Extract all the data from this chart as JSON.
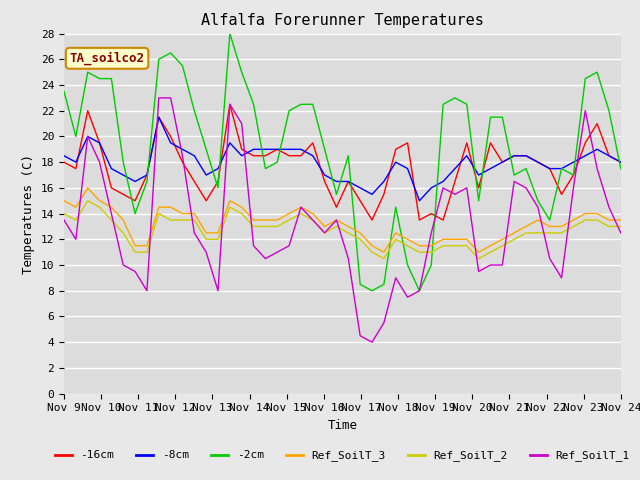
{
  "title": "Alfalfa Forerunner Temperatures",
  "xlabel": "Time",
  "ylabel": "Temperatures (C)",
  "ylim": [
    0,
    28
  ],
  "yticks": [
    0,
    2,
    4,
    6,
    8,
    10,
    12,
    14,
    16,
    18,
    20,
    22,
    24,
    26,
    28
  ],
  "x_labels": [
    "Nov 9",
    "Nov 10",
    "Nov 11",
    "Nov 12",
    "Nov 13",
    "Nov 14",
    "Nov 15",
    "Nov 16",
    "Nov 17",
    "Nov 18",
    "Nov 19",
    "Nov 20",
    "Nov 21",
    "Nov 22",
    "Nov 23",
    "Nov 24"
  ],
  "annotation_text": "TA_soilco2",
  "annotation_color": "#8B0000",
  "annotation_bg": "#FFFFCC",
  "annotation_border": "#CC8800",
  "series": {
    "-16cm": {
      "color": "#FF0000",
      "values": [
        18.0,
        17.5,
        22.0,
        19.5,
        16.0,
        15.5,
        15.0,
        17.0,
        21.5,
        20.0,
        18.0,
        16.5,
        15.0,
        16.5,
        22.5,
        19.0,
        18.5,
        18.5,
        19.0,
        18.5,
        18.5,
        19.5,
        16.5,
        14.5,
        16.5,
        15.0,
        13.5,
        15.5,
        19.0,
        19.5,
        13.5,
        14.0,
        13.5,
        16.5,
        19.5,
        16.0,
        19.5,
        18.0,
        18.5,
        18.5,
        18.0,
        17.5,
        15.5,
        17.0,
        19.5,
        21.0,
        18.5,
        18.0
      ]
    },
    "-8cm": {
      "color": "#0000FF",
      "values": [
        18.5,
        18.0,
        20.0,
        19.5,
        17.5,
        17.0,
        16.5,
        17.0,
        21.5,
        19.5,
        19.0,
        18.5,
        17.0,
        17.5,
        19.5,
        18.5,
        19.0,
        19.0,
        19.0,
        19.0,
        19.0,
        18.5,
        17.0,
        16.5,
        16.5,
        16.0,
        15.5,
        16.5,
        18.0,
        17.5,
        15.0,
        16.0,
        16.5,
        17.5,
        18.5,
        17.0,
        17.5,
        18.0,
        18.5,
        18.5,
        18.0,
        17.5,
        17.5,
        18.0,
        18.5,
        19.0,
        18.5,
        18.0
      ]
    },
    "-2cm": {
      "color": "#00CC00",
      "values": [
        23.5,
        20.0,
        25.0,
        24.5,
        24.5,
        18.0,
        14.0,
        16.5,
        26.0,
        26.5,
        25.5,
        22.0,
        19.0,
        16.0,
        28.0,
        25.0,
        22.5,
        17.5,
        18.0,
        22.0,
        22.5,
        22.5,
        19.0,
        15.5,
        18.5,
        8.5,
        8.0,
        8.5,
        14.5,
        10.0,
        8.0,
        10.0,
        22.5,
        23.0,
        22.5,
        15.0,
        21.5,
        21.5,
        17.0,
        17.5,
        15.0,
        13.5,
        17.5,
        17.0,
        24.5,
        25.0,
        22.0,
        17.5
      ]
    },
    "Ref_SoilT_3": {
      "color": "#FFA500",
      "values": [
        15.0,
        14.5,
        16.0,
        15.0,
        14.5,
        13.5,
        11.5,
        11.5,
        14.5,
        14.5,
        14.0,
        14.0,
        12.5,
        12.5,
        15.0,
        14.5,
        13.5,
        13.5,
        13.5,
        14.0,
        14.5,
        14.0,
        13.0,
        13.5,
        13.0,
        12.5,
        11.5,
        11.0,
        12.5,
        12.0,
        11.5,
        11.5,
        12.0,
        12.0,
        12.0,
        11.0,
        11.5,
        12.0,
        12.5,
        13.0,
        13.5,
        13.0,
        13.0,
        13.5,
        14.0,
        14.0,
        13.5,
        13.5
      ]
    },
    "Ref_SoilT_2": {
      "color": "#CCCC00",
      "values": [
        14.0,
        13.5,
        15.0,
        14.5,
        13.5,
        12.5,
        11.0,
        11.0,
        14.0,
        13.5,
        13.5,
        13.5,
        12.0,
        12.0,
        14.5,
        14.0,
        13.0,
        13.0,
        13.0,
        13.5,
        14.0,
        13.5,
        12.5,
        13.0,
        12.5,
        12.0,
        11.0,
        10.5,
        12.0,
        11.5,
        11.0,
        11.0,
        11.5,
        11.5,
        11.5,
        10.5,
        11.0,
        11.5,
        12.0,
        12.5,
        12.5,
        12.5,
        12.5,
        13.0,
        13.5,
        13.5,
        13.0,
        13.0
      ]
    },
    "Ref_SoilT_1": {
      "color": "#CC00CC",
      "values": [
        13.5,
        12.0,
        20.0,
        18.0,
        14.0,
        10.0,
        9.5,
        8.0,
        23.0,
        23.0,
        18.5,
        12.5,
        11.0,
        8.0,
        22.5,
        21.0,
        11.5,
        10.5,
        11.0,
        11.5,
        14.5,
        13.5,
        12.5,
        13.5,
        10.5,
        4.5,
        4.0,
        5.5,
        9.0,
        7.5,
        8.0,
        12.5,
        16.0,
        15.5,
        16.0,
        9.5,
        10.0,
        10.0,
        16.5,
        16.0,
        14.5,
        10.5,
        9.0,
        16.0,
        22.0,
        17.5,
        14.5,
        12.5
      ]
    }
  },
  "fig_bg": "#E8E8E8",
  "plot_bg": "#DCDCDC",
  "grid_color": "#FFFFFF",
  "title_fontsize": 11,
  "axis_fontsize": 9,
  "tick_fontsize": 8,
  "legend_fontsize": 8
}
